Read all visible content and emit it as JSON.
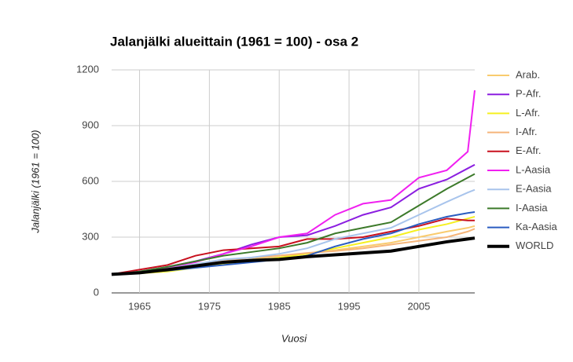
{
  "chart_data": {
    "type": "line",
    "title": "Jalanjälki alueittain (1961 = 100) - osa 2",
    "x_label": "Vuosi",
    "y_label": "Jalanjälki (1961 = 100)",
    "x": [
      1961,
      1965,
      1969,
      1973,
      1977,
      1981,
      1985,
      1989,
      1993,
      1997,
      2001,
      2005,
      2009,
      2012,
      2013
    ],
    "xlim": [
      1961,
      2013
    ],
    "xticks": [
      1965,
      1975,
      1985,
      1995,
      2005
    ],
    "ylim": [
      0,
      1200
    ],
    "yticks": [
      0,
      300,
      600,
      900,
      1200
    ],
    "grid": true,
    "legend": "right",
    "series": [
      {
        "name": "Arab.",
        "color": "#f9cb6e",
        "values": [
          100,
          110,
          125,
          140,
          160,
          180,
          200,
          210,
          230,
          250,
          270,
          300,
          330,
          350,
          360
        ]
      },
      {
        "name": "P-Afr.",
        "color": "#8b1ee0",
        "values": [
          100,
          115,
          140,
          170,
          210,
          260,
          300,
          310,
          360,
          420,
          460,
          560,
          610,
          670,
          690
        ]
      },
      {
        "name": "L-Afr.",
        "color": "#f5f020",
        "values": [
          100,
          105,
          115,
          135,
          155,
          170,
          190,
          210,
          240,
          270,
          300,
          340,
          370,
          400,
          410
        ]
      },
      {
        "name": "I-Afr.",
        "color": "#f5b57a",
        "values": [
          100,
          112,
          125,
          150,
          170,
          190,
          200,
          215,
          225,
          240,
          260,
          280,
          300,
          330,
          345
        ]
      },
      {
        "name": "E-Afr.",
        "color": "#c8101e",
        "values": [
          100,
          125,
          150,
          200,
          230,
          240,
          250,
          290,
          290,
          300,
          330,
          360,
          400,
          390,
          390
        ]
      },
      {
        "name": "L-Aasia",
        "color": "#f020f0",
        "values": [
          100,
          115,
          135,
          165,
          210,
          250,
          300,
          320,
          420,
          480,
          500,
          620,
          660,
          760,
          1090
        ]
      },
      {
        "name": "E-Aasia",
        "color": "#a8c4ec",
        "values": [
          100,
          110,
          130,
          155,
          180,
          190,
          210,
          240,
          290,
          320,
          350,
          420,
          490,
          540,
          555
        ]
      },
      {
        "name": "I-Aasia",
        "color": "#3c7a2a",
        "values": [
          100,
          115,
          140,
          170,
          200,
          220,
          240,
          270,
          320,
          350,
          380,
          470,
          560,
          620,
          640
        ]
      },
      {
        "name": "Ka-Aasia",
        "color": "#2a5cc0",
        "values": [
          100,
          110,
          120,
          135,
          150,
          165,
          180,
          200,
          250,
          290,
          320,
          370,
          410,
          430,
          435
        ]
      },
      {
        "name": "WORLD",
        "color": "#000000",
        "values": [
          100,
          108,
          125,
          145,
          165,
          175,
          180,
          195,
          205,
          215,
          225,
          250,
          275,
          290,
          295
        ]
      }
    ]
  }
}
